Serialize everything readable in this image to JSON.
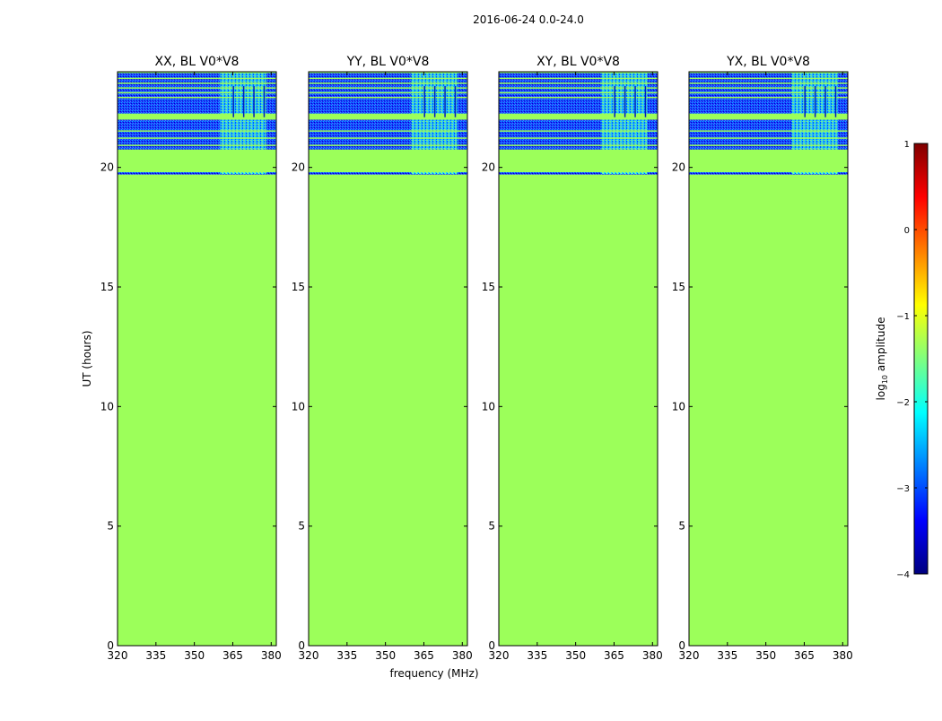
{
  "figure": {
    "suptitle": "2016-06-24 0.0-24.0",
    "xlabel": "frequency (MHz)",
    "ylabel": "UT (hours)"
  },
  "colorbar": {
    "label_prefix": "log",
    "label_sub": "10",
    "label_suffix": " amplitude",
    "range": [
      -4,
      1
    ],
    "ticks": [
      1,
      0,
      -1,
      -2,
      -3,
      -4
    ],
    "tick_labels": [
      "1",
      "0",
      "−1",
      "−2",
      "−3",
      "−4"
    ],
    "colormap": "jet",
    "colors": [
      "#00007f",
      "#0000ff",
      "#007fff",
      "#00ffff",
      "#7fff7f",
      "#ffff00",
      "#ff7f00",
      "#ff0000",
      "#7f0000"
    ]
  },
  "chart_data": {
    "type": "heatmap",
    "panels": [
      "XX, BL V0*V8",
      "YY, BL V0*V8",
      "XY, BL V0*V8",
      "YX, BL V0*V8"
    ],
    "xlim": [
      320,
      382
    ],
    "ylim": [
      0,
      24
    ],
    "xticks": [
      320,
      335,
      350,
      365,
      380
    ],
    "xtick_labels": [
      "320",
      "335",
      "350",
      "365",
      "380"
    ],
    "yticks": [
      0,
      5,
      10,
      15,
      20
    ],
    "ytick_labels": [
      "0",
      "5",
      "10",
      "15",
      "20"
    ],
    "fill_value_log10": -1.1,
    "fill_color": "#9cff5a",
    "data_regions": [
      {
        "t_start": 19.7,
        "t_end": 19.8,
        "note": "narrow low-amplitude band"
      },
      {
        "t_start": 20.7,
        "t_end": 24.0,
        "note": "measured visibilities, mostly low amplitude (~ -3.5)"
      }
    ],
    "rfi_band_mhz": [
      360,
      378
    ],
    "rfi_level_log10": -1.6
  }
}
